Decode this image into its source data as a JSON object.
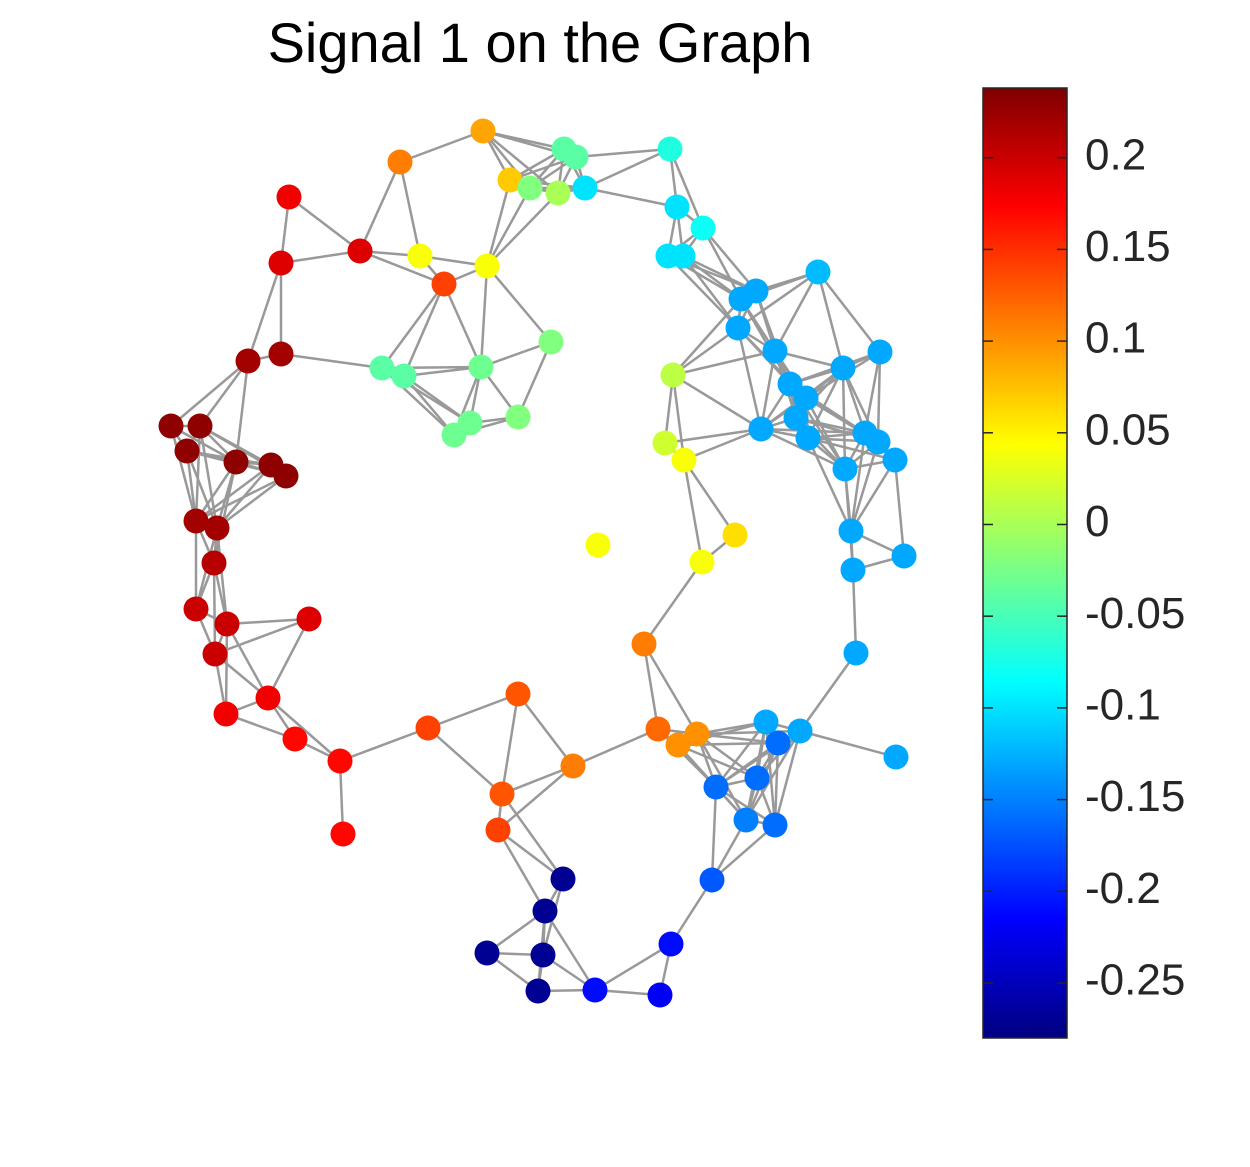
{
  "chart_data": {
    "type": "graph-signal",
    "title": "Signal 1 on the Graph",
    "colormap": "jet",
    "values": [
      0.09,
      0.11,
      0.18,
      0.19,
      0.19,
      0.04,
      0.04,
      0.14,
      0.07,
      -0.02,
      0.0,
      -0.04,
      -0.04,
      -0.1,
      -0.07,
      -0.1,
      -0.08,
      -0.1,
      -0.1,
      -0.12,
      -0.13,
      -0.13,
      -0.13,
      -0.13,
      -0.13,
      -0.13,
      -0.13,
      -0.13,
      -0.13,
      -0.13,
      -0.13,
      -0.13,
      -0.13,
      -0.13,
      -0.13,
      -0.13,
      -0.13,
      -0.13,
      -0.13,
      -0.13,
      -0.13,
      -0.13,
      -0.16,
      -0.16,
      -0.16,
      -0.15,
      -0.16,
      -0.17,
      -0.21,
      -0.21,
      -0.22,
      -0.27,
      -0.27,
      -0.27,
      -0.27,
      -0.27,
      0.22,
      0.22,
      0.23,
      0.23,
      0.23,
      0.23,
      0.23,
      0.23,
      0.22,
      0.22,
      0.21,
      0.2,
      0.2,
      0.19,
      0.2,
      0.18,
      0.18,
      0.17,
      0.17,
      0.17,
      0.14,
      0.13,
      0.13,
      0.14,
      0.11,
      0.11,
      0.12,
      0.1,
      0.1,
      0.04,
      0.04,
      0.06,
      0.02,
      0.04,
      0.01,
      -0.02,
      -0.03,
      -0.02,
      -0.04,
      -0.04,
      -0.03,
      -0.03
    ],
    "clim": [
      -0.28,
      0.238
    ],
    "colorbar_ticks": [
      0.2,
      0.15,
      0.1,
      0.05,
      0,
      -0.05,
      -0.1,
      -0.15,
      -0.2,
      -0.25
    ]
  }
}
